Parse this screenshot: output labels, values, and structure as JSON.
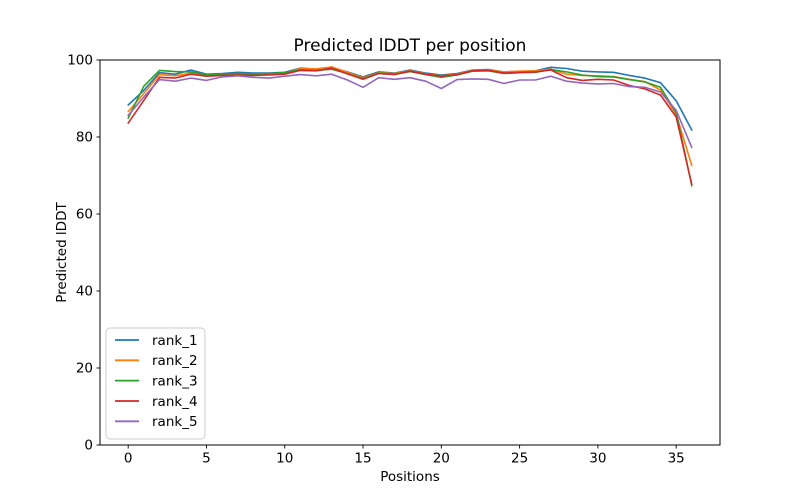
{
  "chart_data": {
    "type": "line",
    "title": "Predicted lDDT per position",
    "xlabel": "Positions",
    "ylabel": "Predicted lDDT",
    "xlim": [
      -1.8,
      37.8
    ],
    "ylim": [
      0,
      100
    ],
    "x_ticks": [
      0,
      5,
      10,
      15,
      20,
      25,
      30,
      35
    ],
    "y_ticks": [
      0,
      20,
      40,
      60,
      80,
      100
    ],
    "grid": false,
    "legend_position": "lower left",
    "x": [
      0,
      1,
      2,
      3,
      4,
      5,
      6,
      7,
      8,
      9,
      10,
      11,
      12,
      13,
      14,
      15,
      16,
      17,
      18,
      19,
      20,
      21,
      22,
      23,
      24,
      25,
      26,
      27,
      28,
      29,
      30,
      31,
      32,
      33,
      34,
      35,
      36
    ],
    "series": [
      {
        "name": "rank_1",
        "color": "#1f77b4",
        "values": [
          88.3,
          92.1,
          96.7,
          96.3,
          97.4,
          96.3,
          96.5,
          96.8,
          96.6,
          96.6,
          96.8,
          97.9,
          97.6,
          98.0,
          96.9,
          95.6,
          96.9,
          96.6,
          97.4,
          96.6,
          96.1,
          96.5,
          97.4,
          97.5,
          96.9,
          97.0,
          97.2,
          98.1,
          97.8,
          97.1,
          96.9,
          96.8,
          96.0,
          95.3,
          94.1,
          89.4,
          81.8
        ]
      },
      {
        "name": "rank_2",
        "color": "#ff7f0e",
        "values": [
          86.6,
          91.3,
          96.2,
          95.9,
          96.6,
          96.0,
          96.2,
          96.4,
          96.3,
          96.4,
          96.6,
          97.8,
          97.7,
          98.2,
          96.8,
          95.4,
          96.7,
          96.5,
          97.2,
          96.4,
          95.9,
          96.3,
          97.3,
          97.4,
          96.9,
          97.1,
          97.2,
          97.6,
          96.3,
          96.0,
          95.9,
          95.7,
          95.0,
          94.4,
          92.2,
          85.9,
          72.6
        ]
      },
      {
        "name": "rank_3",
        "color": "#2ca02c",
        "values": [
          84.9,
          93.2,
          97.3,
          97.0,
          96.9,
          96.2,
          96.4,
          96.5,
          96.4,
          96.5,
          96.7,
          97.5,
          97.3,
          97.6,
          96.5,
          95.2,
          96.6,
          96.3,
          97.0,
          96.2,
          95.5,
          96.1,
          97.1,
          97.2,
          96.5,
          96.7,
          96.8,
          97.5,
          96.9,
          96.1,
          95.7,
          95.6,
          94.9,
          94.3,
          92.9,
          86.3,
          67.3
        ]
      },
      {
        "name": "rank_4",
        "color": "#d62728",
        "values": [
          83.6,
          89.5,
          95.5,
          95.3,
          96.3,
          95.8,
          96.0,
          96.1,
          96.0,
          96.1,
          96.3,
          97.3,
          97.2,
          97.9,
          96.4,
          95.0,
          96.5,
          96.2,
          97.1,
          96.3,
          95.8,
          96.2,
          97.2,
          97.3,
          96.6,
          96.8,
          96.9,
          97.4,
          95.4,
          94.7,
          95.0,
          94.8,
          93.4,
          92.5,
          90.9,
          85.2,
          67.7
        ]
      },
      {
        "name": "rank_5",
        "color": "#9467bd",
        "values": [
          85.6,
          90.4,
          94.9,
          94.5,
          95.3,
          94.7,
          95.6,
          95.9,
          95.5,
          95.3,
          95.8,
          96.2,
          95.9,
          96.3,
          94.8,
          92.9,
          95.4,
          95.0,
          95.4,
          94.5,
          92.6,
          94.9,
          95.1,
          95.0,
          93.9,
          94.8,
          94.8,
          95.8,
          94.5,
          94.0,
          93.8,
          93.9,
          93.1,
          92.9,
          91.7,
          86.9,
          77.3
        ]
      }
    ],
    "style": {
      "spine_color": "#000000",
      "background": "#ffffff",
      "legend_border": "#cccccc",
      "line_width": 1.6
    }
  }
}
